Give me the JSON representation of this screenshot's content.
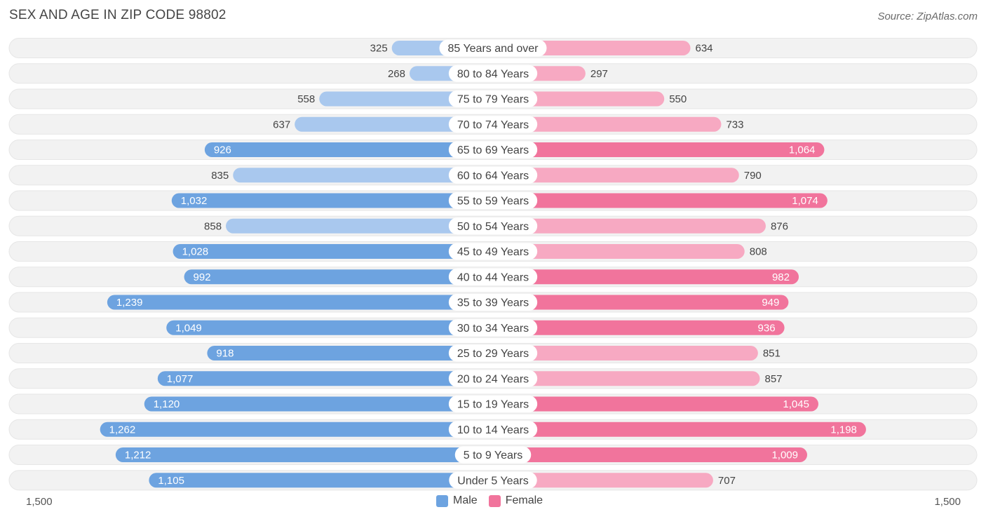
{
  "title": "SEX AND AGE IN ZIP CODE 98802",
  "source": "Source: ZipAtlas.com",
  "axis": {
    "left_label": "1,500",
    "right_label": "1,500"
  },
  "legend": {
    "male_label": "Male",
    "female_label": "Female"
  },
  "colors": {
    "male_dark": "#6da3e0",
    "male_light": "#a9c8ee",
    "female_dark": "#f1749c",
    "female_light": "#f7a9c2",
    "row_bg": "#f2f2f2"
  },
  "chart_data": {
    "type": "bar",
    "orientation": "horizontal-diverging",
    "xlim": [
      -1500,
      1500
    ],
    "categories": [
      "85 Years and over",
      "80 to 84 Years",
      "75 to 79 Years",
      "70 to 74 Years",
      "65 to 69 Years",
      "60 to 64 Years",
      "55 to 59 Years",
      "50 to 54 Years",
      "45 to 49 Years",
      "40 to 44 Years",
      "35 to 39 Years",
      "30 to 34 Years",
      "25 to 29 Years",
      "20 to 24 Years",
      "15 to 19 Years",
      "10 to 14 Years",
      "5 to 9 Years",
      "Under 5 Years"
    ],
    "series": [
      {
        "name": "Male",
        "values": [
          325,
          268,
          558,
          637,
          926,
          835,
          1032,
          858,
          1028,
          992,
          1239,
          1049,
          918,
          1077,
          1120,
          1262,
          1212,
          1105
        ],
        "labels": [
          "325",
          "268",
          "558",
          "637",
          "926",
          "835",
          "1,032",
          "858",
          "1,028",
          "992",
          "1,239",
          "1,049",
          "918",
          "1,077",
          "1,120",
          "1,262",
          "1,212",
          "1,105"
        ]
      },
      {
        "name": "Female",
        "values": [
          634,
          297,
          550,
          733,
          1064,
          790,
          1074,
          876,
          808,
          982,
          949,
          936,
          851,
          857,
          1045,
          1198,
          1009,
          707
        ],
        "labels": [
          "634",
          "297",
          "550",
          "733",
          "1,064",
          "790",
          "1,074",
          "876",
          "808",
          "982",
          "949",
          "936",
          "851",
          "857",
          "1,045",
          "1,198",
          "1,009",
          "707"
        ]
      }
    ],
    "legend_position": "bottom-center"
  }
}
